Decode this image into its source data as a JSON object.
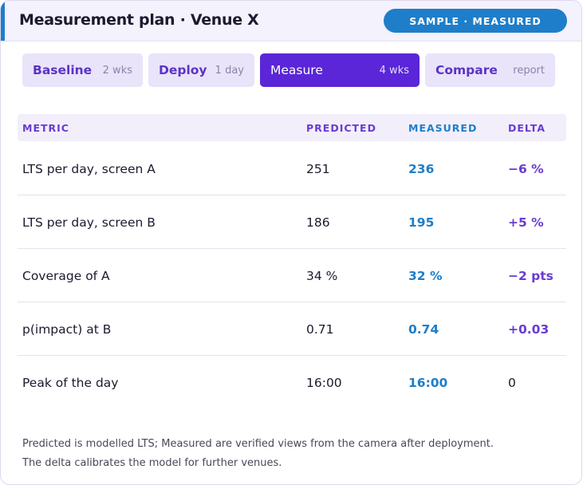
{
  "header": {
    "title": "Measurement plan · Venue X",
    "badge": "SAMPLE · MEASURED",
    "accent_color": "#1f7ec9"
  },
  "phases": [
    {
      "name": "Baseline",
      "duration": "2 wks",
      "active": false
    },
    {
      "name": "Deploy",
      "duration": "1 day",
      "active": false
    },
    {
      "name": "Measure",
      "duration": "4 wks",
      "active": true
    },
    {
      "name": "Compare",
      "duration": "report",
      "active": false
    }
  ],
  "table": {
    "columns": [
      "METRIC",
      "PREDICTED",
      "MEASURED",
      "DELTA"
    ],
    "rows": [
      {
        "metric": "LTS per day, screen A",
        "predicted": "251",
        "measured": "236",
        "delta": "−6 %"
      },
      {
        "metric": "LTS per day, screen B",
        "predicted": "186",
        "measured": "195",
        "delta": "+5 %"
      },
      {
        "metric": "Coverage of A",
        "predicted": "34 %",
        "measured": "32 %",
        "delta": "−2 pts"
      },
      {
        "metric": "p(impact) at B",
        "predicted": "0.71",
        "measured": "0.74",
        "delta": "+0.03"
      },
      {
        "metric": "Peak of the day",
        "predicted": "16:00",
        "measured": "16:00",
        "delta": "0"
      }
    ]
  },
  "footnote": {
    "line1": "Predicted is modelled LTS; Measured are verified views from the camera after deployment.",
    "line2": "The delta calibrates the model for further venues."
  },
  "colors": {
    "primary_purple": "#5a26d8",
    "label_purple": "#6a3bd2",
    "measured_blue": "#1f7ec9"
  }
}
